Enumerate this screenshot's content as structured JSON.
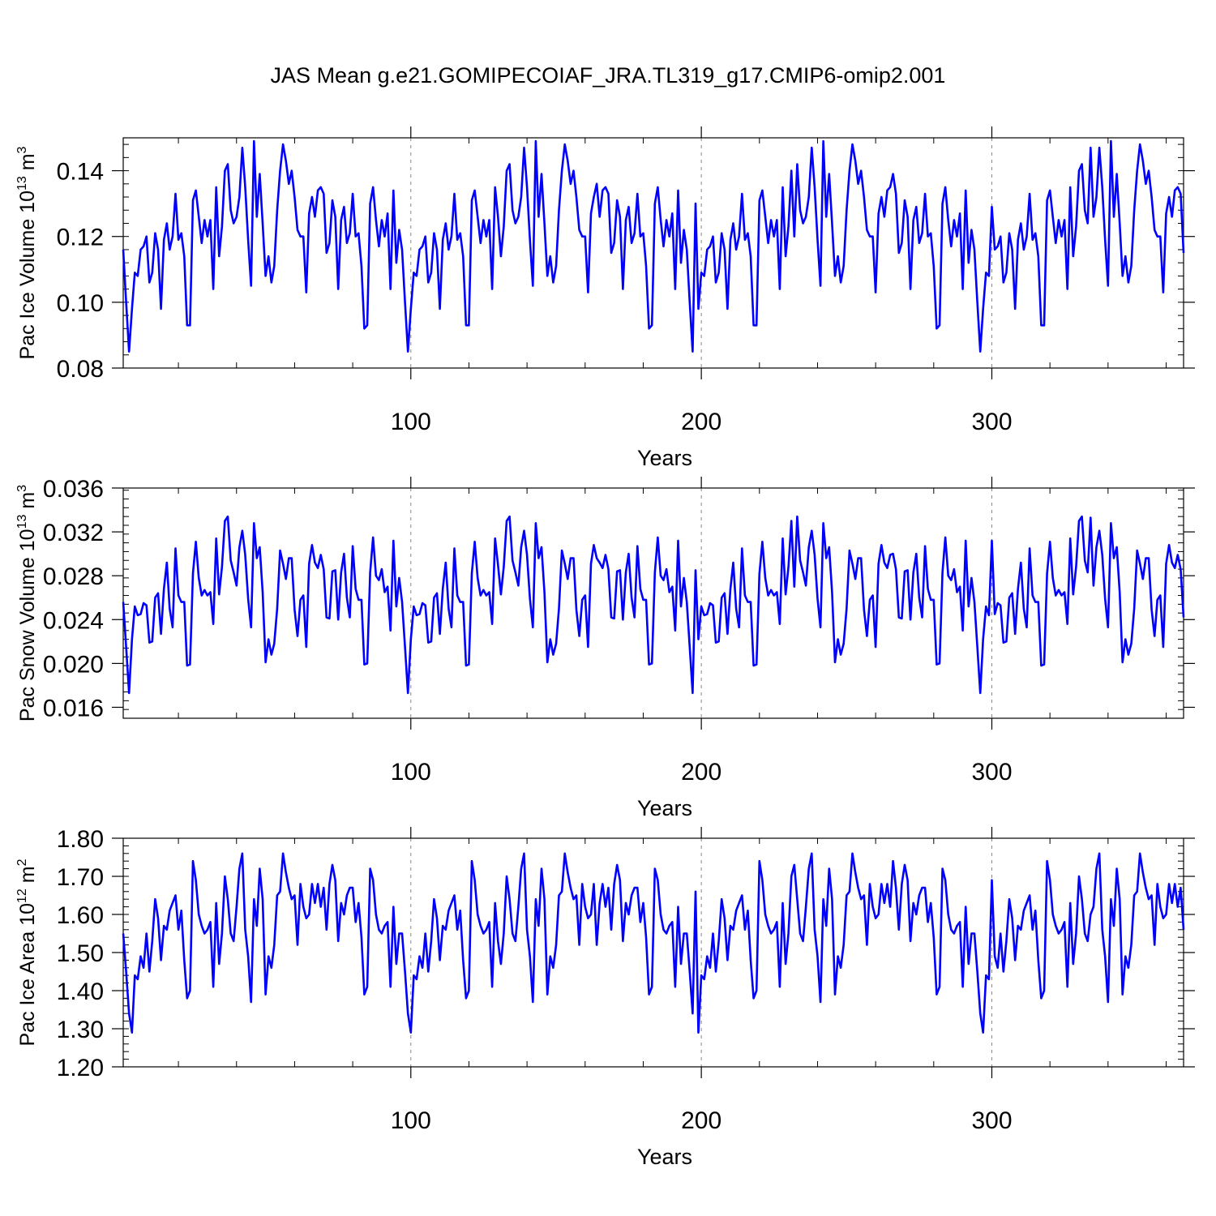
{
  "title": "JAS Mean g.e21.GOMIPECOIAF_JRA.TL319_g17.CMIP6-omip2.001",
  "colors": {
    "series": "#0000ff",
    "axis": "#000000",
    "grid": "#888888"
  },
  "chart_data": [
    {
      "type": "line",
      "name": "ice-volume",
      "ylabel": "Pac Ice Volume 10",
      "ylabel_sup": "13",
      "ylabel_unit": "m",
      "ylabel_unit_sup": "3",
      "xlabel": "Years",
      "xlim": [
        1,
        366
      ],
      "ylim": [
        0.08,
        0.15
      ],
      "xticks": [
        100,
        200,
        300
      ],
      "yticks": [
        0.08,
        0.1,
        0.12,
        0.14
      ],
      "ytick_labels": [
        "0.08",
        "0.10",
        "0.12",
        "0.14"
      ],
      "base": [
        0.116,
        0.1,
        0.085,
        0.098,
        0.109,
        0.108,
        0.116,
        0.117,
        0.12,
        0.106,
        0.109,
        0.121,
        0.116,
        0.098,
        0.119,
        0.124,
        0.116,
        0.12,
        0.133,
        0.119,
        0.121,
        0.114,
        0.093,
        0.093,
        0.131,
        0.134,
        0.126,
        0.118,
        0.125,
        0.12,
        0.125,
        0.104,
        0.135,
        0.114,
        0.123,
        0.14,
        0.142,
        0.128,
        0.124,
        0.126,
        0.132,
        0.147,
        0.135,
        0.119,
        0.105,
        0.149,
        0.126,
        0.139,
        0.124,
        0.108,
        0.114,
        0.106,
        0.111,
        0.128,
        0.14,
        0.148,
        0.143,
        0.136,
        0.14,
        0.132,
        0.122,
        0.12,
        0.12,
        0.103,
        0.127,
        0.132,
        0.126,
        0.134,
        0.135,
        0.133,
        0.115,
        0.118,
        0.131,
        0.126,
        0.104,
        0.125,
        0.129,
        0.118,
        0.121,
        0.133,
        0.12,
        0.121,
        0.111,
        0.092,
        0.093,
        0.13,
        0.135,
        0.125,
        0.117,
        0.125,
        0.12,
        0.127,
        0.104,
        0.134,
        0.112,
        0.122
      ],
      "extra": [
        0.12,
        0.139,
        0.129,
        0.147,
        0.126,
        0.136,
        0.13
      ],
      "extra_rows": 3
    },
    {
      "type": "line",
      "name": "snow-volume",
      "ylabel": "Pac Snow Volume 10",
      "ylabel_sup": "13",
      "ylabel_unit": "m",
      "ylabel_unit_sup": "3",
      "xlabel": "Years",
      "xlim": [
        1,
        366
      ],
      "ylim": [
        0.015,
        0.036
      ],
      "xticks": [
        100,
        200,
        300
      ],
      "yticks": [
        0.016,
        0.02,
        0.024,
        0.028,
        0.032,
        0.036
      ],
      "ytick_labels": [
        "0.016",
        "0.020",
        "0.024",
        "0.028",
        "0.032",
        "0.036"
      ],
      "base": [
        0.0256,
        0.0215,
        0.0173,
        0.0222,
        0.0252,
        0.0244,
        0.0245,
        0.0255,
        0.0253,
        0.0219,
        0.022,
        0.026,
        0.0264,
        0.0227,
        0.0268,
        0.0292,
        0.025,
        0.0233,
        0.0305,
        0.0262,
        0.0256,
        0.0256,
        0.0198,
        0.0199,
        0.0282,
        0.0311,
        0.0278,
        0.0262,
        0.0267,
        0.0262,
        0.0265,
        0.0236,
        0.0314,
        0.0263,
        0.0288,
        0.033,
        0.0334,
        0.0294,
        0.0283,
        0.0271,
        0.0306,
        0.0321,
        0.0299,
        0.0259,
        0.0233,
        0.0328,
        0.0296,
        0.0306,
        0.0265,
        0.0201,
        0.0222,
        0.0208,
        0.0218,
        0.025,
        0.0303,
        0.0291,
        0.0277,
        0.0296,
        0.0296,
        0.0249,
        0.0225,
        0.0258,
        0.0262,
        0.0215,
        0.0291,
        0.0308,
        0.0292,
        0.0287,
        0.0299,
        0.0286,
        0.0242,
        0.0241,
        0.0284,
        0.0285,
        0.024,
        0.0283,
        0.03,
        0.026,
        0.0242,
        0.0307,
        0.0268,
        0.0258,
        0.0258,
        0.0199,
        0.02,
        0.0283,
        0.0315,
        0.028,
        0.0276,
        0.0286,
        0.0265,
        0.027,
        0.023,
        0.0312,
        0.0252,
        0.0278
      ],
      "extra": [
        0.03,
        0.0312,
        0.0333,
        0.029,
        0.0296,
        0.0285,
        0.027
      ],
      "extra_rows": 2
    },
    {
      "type": "line",
      "name": "ice-area",
      "ylabel": "Pac Ice Area 10",
      "ylabel_sup": "12",
      "ylabel_unit": "m",
      "ylabel_unit_sup": "2",
      "xlabel": "Years",
      "xlim": [
        1,
        366
      ],
      "ylim": [
        1.2,
        1.8
      ],
      "xticks": [
        100,
        200,
        300
      ],
      "yticks": [
        1.2,
        1.3,
        1.4,
        1.5,
        1.6,
        1.7,
        1.8
      ],
      "ytick_labels": [
        "1.20",
        "1.30",
        "1.40",
        "1.50",
        "1.60",
        "1.70",
        "1.80"
      ],
      "base": [
        1.55,
        1.45,
        1.34,
        1.29,
        1.44,
        1.43,
        1.49,
        1.46,
        1.55,
        1.45,
        1.53,
        1.64,
        1.59,
        1.48,
        1.57,
        1.56,
        1.61,
        1.63,
        1.65,
        1.56,
        1.61,
        1.48,
        1.38,
        1.4,
        1.74,
        1.69,
        1.6,
        1.57,
        1.55,
        1.56,
        1.58,
        1.41,
        1.63,
        1.47,
        1.55,
        1.7,
        1.64,
        1.55,
        1.53,
        1.62,
        1.72,
        1.76,
        1.56,
        1.49,
        1.37,
        1.64,
        1.57,
        1.72,
        1.64,
        1.39,
        1.49,
        1.46,
        1.52,
        1.65,
        1.66,
        1.76,
        1.71,
        1.67,
        1.64,
        1.65,
        1.52,
        1.68,
        1.62,
        1.59,
        1.6,
        1.68,
        1.63,
        1.68,
        1.62,
        1.67,
        1.56,
        1.68,
        1.73,
        1.69,
        1.53,
        1.63,
        1.6,
        1.65,
        1.67,
        1.67,
        1.58,
        1.63,
        1.54,
        1.39,
        1.41,
        1.72,
        1.69,
        1.6,
        1.56,
        1.55,
        1.57,
        1.58,
        1.41,
        1.62,
        1.47,
        1.55
      ],
      "extra": [
        1.69,
        1.6,
        1.53,
        1.52,
        1.66,
        1.73,
        1.74
      ],
      "extra_rows": 1
    }
  ]
}
